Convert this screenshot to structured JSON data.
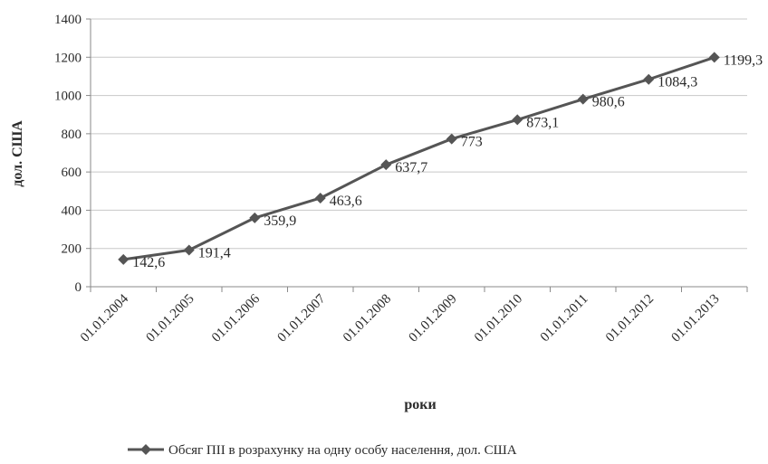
{
  "chart_data": {
    "type": "line",
    "xlabel": "роки",
    "ylabel": "дол. США",
    "categories": [
      "01.01.2004",
      "01.01.2005",
      "01.01.2006",
      "01.01.2007",
      "01.01.2008",
      "01.01.2009",
      "01.01.2010",
      "01.01.2011",
      "01.01.2012",
      "01.01.2013"
    ],
    "series": [
      {
        "name": "Обсяг ПІІ в розрахунку на одну особу населення, дол. США",
        "values": [
          142.6,
          191.4,
          359.9,
          463.6,
          637.7,
          773,
          873.1,
          980.6,
          1084.3,
          1199.3
        ],
        "data_labels": [
          "142,6",
          "191,4",
          "359,9",
          "463,6",
          "637,7",
          "773",
          "873,1",
          "980,6",
          "1084,3",
          "1199,3"
        ],
        "color": "#555555",
        "marker": "diamond"
      }
    ],
    "ylim": [
      0,
      1400
    ],
    "yticks": [
      "0",
      "200",
      "400",
      "600",
      "800",
      "1000",
      "1200",
      "1400"
    ],
    "grid": true,
    "legend_position": "bottom"
  }
}
